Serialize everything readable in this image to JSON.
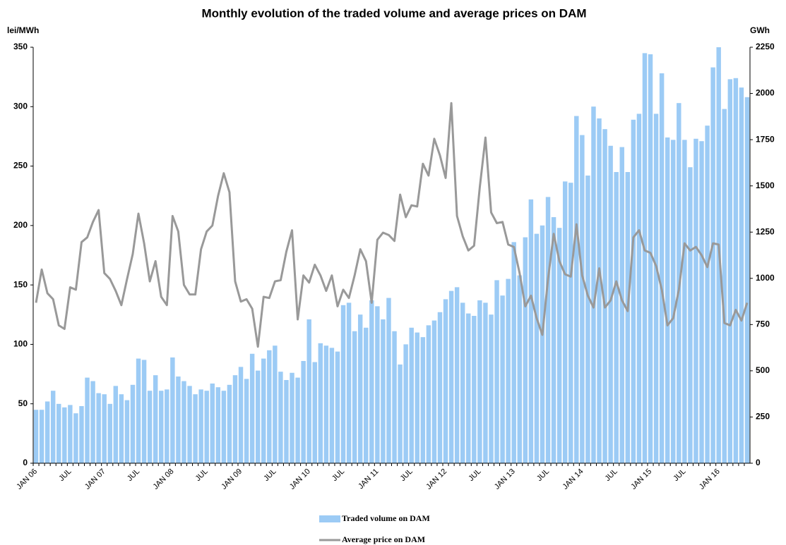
{
  "chart_data": {
    "type": "bar-line",
    "title": "Monthly evolution of the traded volume and average prices on DAM",
    "ylabel": "lei/MWh",
    "y2label": "GWh",
    "categories": [
      "JAN 06",
      null,
      null,
      null,
      null,
      null,
      "JUL",
      null,
      null,
      null,
      null,
      null,
      "JAN 07",
      null,
      null,
      null,
      null,
      null,
      "JUL",
      null,
      null,
      null,
      null,
      null,
      "JAN 08",
      null,
      null,
      null,
      null,
      null,
      "JUL",
      null,
      null,
      null,
      null,
      null,
      "JAN 09",
      null,
      null,
      null,
      null,
      null,
      "JUL",
      null,
      null,
      null,
      null,
      null,
      "JAN 10",
      null,
      null,
      null,
      null,
      null,
      "JUL",
      null,
      null,
      null,
      null,
      null,
      "JAN 11",
      null,
      null,
      null,
      null,
      null,
      "JUL",
      null,
      null,
      null,
      null,
      null,
      "JAN 12",
      null,
      null,
      null,
      null,
      null,
      "JUL",
      null,
      null,
      null,
      null,
      null,
      "JAN 13",
      null,
      null,
      null,
      null,
      null,
      "JUL",
      null,
      null,
      null,
      null,
      null,
      "JAN 14",
      null,
      null,
      null,
      null,
      null,
      "JUL",
      null,
      null,
      null,
      null,
      null,
      "JAN 15",
      null,
      null,
      null,
      null,
      null,
      "JUL",
      null,
      null,
      null,
      null,
      null,
      "JAN 16",
      null,
      null,
      null,
      null,
      null
    ],
    "series": [
      {
        "name": "Traded volume on DAM",
        "type": "bar",
        "axis": "y2",
        "color": "#9ccbf5",
        "values": [
          289,
          289,
          334,
          392,
          321,
          302,
          315,
          270,
          309,
          463,
          444,
          379,
          373,
          321,
          418,
          373,
          341,
          424,
          566,
          559,
          392,
          476,
          392,
          399,
          572,
          469,
          444,
          418,
          373,
          399,
          392,
          431,
          411,
          392,
          424,
          476,
          521,
          456,
          592,
          501,
          566,
          611,
          636,
          495,
          450,
          489,
          463,
          553,
          778,
          547,
          649,
          636,
          624,
          604,
          855,
          868,
          714,
          804,
          733,
          881,
          849,
          778,
          894,
          714,
          534,
          643,
          733,
          707,
          682,
          746,
          772,
          817,
          887,
          932,
          952,
          868,
          810,
          797,
          881,
          868,
          804,
          990,
          907,
          997,
          1196,
          1016,
          1222,
          1427,
          1241,
          1286,
          1440,
          1331,
          1273,
          1524,
          1517,
          1878,
          1775,
          1556,
          1929,
          1865,
          1807,
          1717,
          1575,
          1710,
          1575,
          1858,
          1890,
          2218,
          2212,
          1890,
          2109,
          1762,
          1749,
          1948,
          1749,
          1601,
          1755,
          1742,
          1826,
          2141,
          2250,
          1916,
          2077,
          2083,
          2032,
          1980
        ]
      },
      {
        "name": "Average price on DAM",
        "type": "line",
        "axis": "y",
        "color": "#999999",
        "values": [
          135,
          163,
          143,
          138,
          116,
          113,
          148,
          146,
          186,
          190,
          203,
          213,
          160,
          155,
          145,
          133,
          155,
          176,
          210,
          185,
          153,
          170,
          140,
          133,
          208,
          195,
          150,
          142,
          142,
          180,
          195,
          200,
          225,
          244,
          228,
          153,
          136,
          138,
          130,
          98,
          140,
          139,
          153,
          154,
          178,
          196,
          121,
          158,
          152,
          167,
          158,
          145,
          158,
          132,
          146,
          139,
          158,
          180,
          170,
          135,
          188,
          194,
          192,
          187,
          226,
          207,
          217,
          216,
          252,
          242,
          273,
          259,
          240,
          303,
          208,
          191,
          179,
          183,
          232,
          274,
          211,
          202,
          203,
          184,
          182,
          160,
          132,
          141,
          122,
          108,
          155,
          193,
          170,
          159,
          157,
          201,
          158,
          141,
          131,
          164,
          131,
          137,
          153,
          137,
          128,
          190,
          196,
          179,
          177,
          166,
          146,
          116,
          122,
          146,
          185,
          179,
          182,
          175,
          165,
          185,
          184,
          118,
          116,
          129,
          120,
          135
        ]
      }
    ],
    "ylim": [
      0,
      350
    ],
    "yticks": [
      0,
      50,
      100,
      150,
      200,
      250,
      300,
      350
    ],
    "y2lim": [
      0,
      2250
    ],
    "y2ticks": [
      0,
      250,
      500,
      750,
      1000,
      1250,
      1500,
      1750,
      2000,
      2250
    ],
    "grid": false,
    "legend": "bottom"
  }
}
